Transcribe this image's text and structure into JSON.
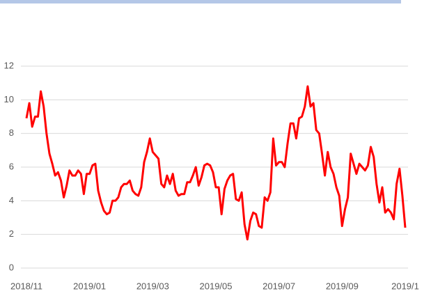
{
  "chart_data": {
    "type": "line",
    "categories": [
      "2018/11",
      null,
      null,
      null,
      null,
      null,
      null,
      null,
      null,
      null,
      null,
      null,
      null,
      null,
      null,
      null,
      null,
      null,
      null,
      null,
      null,
      null,
      "2019/01",
      null,
      null,
      null,
      null,
      null,
      null,
      null,
      null,
      null,
      null,
      null,
      null,
      null,
      null,
      null,
      null,
      null,
      null,
      null,
      null,
      null,
      "2019/03",
      null,
      null,
      null,
      null,
      null,
      null,
      null,
      null,
      null,
      null,
      null,
      null,
      null,
      null,
      null,
      null,
      null,
      null,
      null,
      null,
      null,
      "2019/05",
      null,
      null,
      null,
      null,
      null,
      null,
      null,
      null,
      null,
      null,
      null,
      null,
      null,
      null,
      null,
      null,
      null,
      null,
      null,
      null,
      null,
      "2019/07",
      null,
      null,
      null,
      null,
      null,
      null,
      null,
      null,
      null,
      null,
      null,
      null,
      null,
      null,
      null,
      null,
      null,
      null,
      null,
      null,
      null,
      "2019/09",
      null,
      null,
      null,
      null,
      null,
      null,
      null,
      null,
      null,
      null,
      null,
      null,
      null,
      null,
      null,
      null,
      null,
      null,
      null,
      null,
      null,
      "2019/1"
    ],
    "series": [
      {
        "color": "#ff0000",
        "values": [
          8.9,
          9.8,
          8.4,
          9.0,
          9.0,
          10.5,
          9.6,
          8.0,
          6.8,
          6.2,
          5.5,
          5.7,
          5.2,
          4.2,
          4.9,
          5.8,
          5.5,
          5.5,
          5.8,
          5.6,
          4.4,
          5.6,
          5.6,
          6.1,
          6.2,
          4.6,
          3.9,
          3.4,
          3.2,
          3.3,
          4.0,
          4.0,
          4.2,
          4.8,
          5.0,
          5.0,
          5.2,
          4.6,
          4.4,
          4.3,
          4.8,
          6.3,
          6.9,
          7.7,
          6.9,
          6.7,
          6.5,
          5.0,
          4.8,
          5.5,
          5.0,
          5.6,
          4.6,
          4.3,
          4.4,
          4.4,
          5.1,
          5.1,
          5.5,
          6.0,
          4.9,
          5.4,
          6.1,
          6.2,
          6.1,
          5.7,
          4.8,
          4.8,
          3.2,
          4.7,
          5.2,
          5.5,
          5.6,
          4.1,
          4.0,
          4.5,
          2.6,
          1.7,
          2.8,
          3.3,
          3.2,
          2.5,
          2.4,
          4.2,
          4.0,
          4.5,
          7.7,
          6.1,
          6.3,
          6.3,
          6.0,
          7.4,
          8.6,
          8.6,
          7.7,
          8.9,
          9.0,
          9.6,
          10.8,
          9.6,
          9.8,
          8.2,
          8.0,
          6.8,
          5.5,
          6.9,
          6.0,
          5.6,
          4.8,
          4.3,
          2.5,
          3.5,
          4.2,
          6.8,
          6.2,
          5.6,
          6.2,
          6.0,
          5.8,
          6.1,
          7.2,
          6.6,
          5.0,
          3.9,
          4.8,
          3.3,
          3.5,
          3.3,
          2.9,
          5.0,
          5.9,
          4.3,
          2.4
        ]
      }
    ],
    "ylim": [
      0,
      12
    ],
    "yticks": [
      0,
      2,
      4,
      6,
      8,
      10,
      12
    ],
    "grid": true
  }
}
